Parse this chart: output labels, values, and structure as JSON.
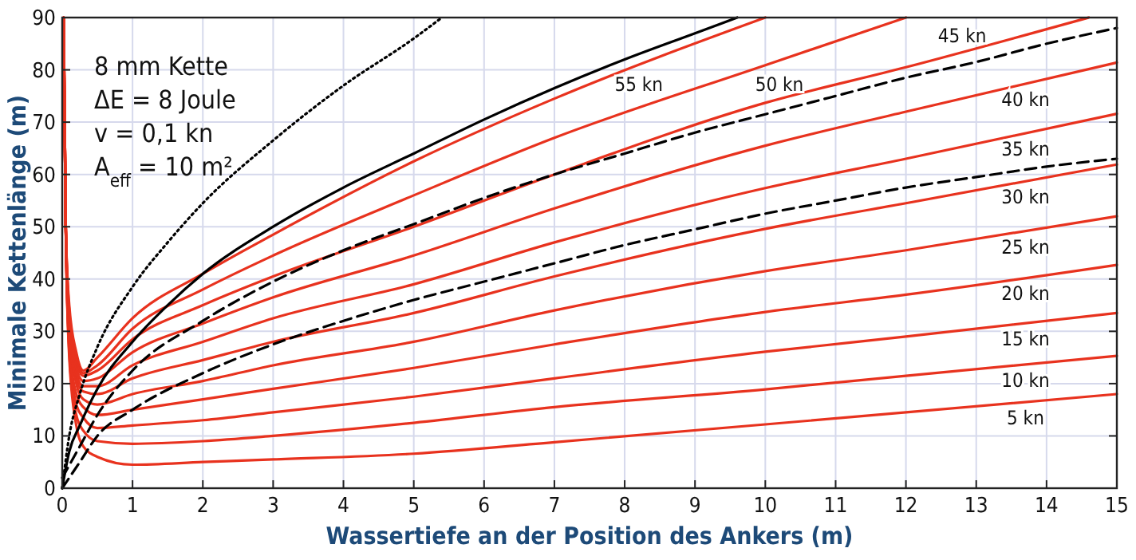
{
  "chart_data": {
    "type": "line",
    "xlabel": "Wassertiefe an der Position des Ankers (m)",
    "ylabel": "Minimale Kettenlänge (m)",
    "annotations": [
      "8 mm Kette",
      "ΔE = 8 Joule",
      "v = 0,1 kn",
      "A$_{eff}$ = 10 m²"
    ],
    "xlim": [
      0,
      15
    ],
    "ylim": [
      0,
      90
    ],
    "xticks": [
      0,
      1,
      2,
      3,
      4,
      5,
      6,
      7,
      8,
      9,
      10,
      11,
      12,
      13,
      14,
      15
    ],
    "yticks": [
      0,
      10,
      20,
      30,
      40,
      50,
      60,
      70,
      80,
      90
    ],
    "grid": true,
    "legend": false,
    "marker": "none",
    "series": [
      {
        "name": "5 kn",
        "color": "#e8321e",
        "x": [
          0.02,
          0.05,
          0.1,
          0.2,
          0.3,
          0.5,
          1,
          2,
          3,
          5,
          7,
          10,
          12,
          15
        ],
        "values": [
          90,
          50,
          25,
          12,
          8,
          6,
          4.5,
          5,
          5.5,
          6.6,
          8.8,
          12.2,
          14.5,
          18
        ]
      },
      {
        "name": "10 kn",
        "color": "#e8321e",
        "x": [
          0.02,
          0.05,
          0.1,
          0.2,
          0.3,
          0.5,
          1,
          2,
          3,
          5,
          7,
          10,
          12,
          15
        ],
        "values": [
          90,
          50,
          26,
          14,
          11,
          9,
          8.5,
          9,
          10,
          12.5,
          15.5,
          18.9,
          21.5,
          25.3
        ]
      },
      {
        "name": "15 kn",
        "color": "#e8321e",
        "x": [
          0.02,
          0.05,
          0.1,
          0.2,
          0.3,
          0.5,
          1,
          2,
          3,
          5,
          7,
          10,
          12,
          15
        ],
        "values": [
          90,
          50,
          27,
          16,
          13.5,
          11.5,
          12,
          13,
          14.5,
          17.5,
          21,
          26.1,
          29,
          33.5
        ]
      },
      {
        "name": "20 kn",
        "color": "#e8321e",
        "x": [
          0.02,
          0.05,
          0.1,
          0.2,
          0.3,
          0.5,
          1,
          2,
          3,
          5,
          7,
          10,
          12,
          15
        ],
        "values": [
          90,
          50,
          28,
          18,
          15.5,
          14,
          15,
          17,
          19,
          23,
          27.5,
          33.7,
          37,
          42.7
        ]
      },
      {
        "name": "25 kn",
        "color": "#e8321e",
        "x": [
          0.02,
          0.05,
          0.1,
          0.2,
          0.3,
          0.5,
          1,
          2,
          3,
          5,
          7,
          10,
          12,
          15
        ],
        "values": [
          90,
          50,
          29,
          20,
          17,
          16,
          18,
          20.5,
          23.5,
          28,
          34,
          41.5,
          45.5,
          52
        ]
      },
      {
        "name": "30 kn",
        "color": "#e8321e",
        "x": [
          0.02,
          0.05,
          0.1,
          0.2,
          0.3,
          0.5,
          1,
          2,
          3,
          5,
          7,
          10,
          12,
          15
        ],
        "values": [
          90,
          50,
          30,
          21,
          18.5,
          18,
          21,
          24.5,
          28,
          33.5,
          40.5,
          49.6,
          54.5,
          61.9
        ]
      },
      {
        "name": "35 kn",
        "color": "#e8321e",
        "x": [
          0.02,
          0.05,
          0.1,
          0.2,
          0.3,
          0.5,
          1,
          2,
          3,
          5,
          7,
          10,
          12,
          15
        ],
        "values": [
          90,
          50,
          31,
          22,
          19.5,
          19.5,
          23.5,
          28,
          32.5,
          39,
          47,
          57.4,
          63,
          71.6
        ]
      },
      {
        "name": "40 kn",
        "color": "#e8321e",
        "x": [
          0.02,
          0.05,
          0.1,
          0.2,
          0.3,
          0.5,
          1,
          2,
          3,
          5,
          7,
          10,
          12,
          15
        ],
        "values": [
          90,
          50,
          32,
          23,
          20.5,
          21,
          26,
          31.5,
          36.5,
          44.5,
          53.5,
          65.5,
          72,
          81.4
        ]
      },
      {
        "name": "45 kn",
        "color": "#e8321e",
        "x": [
          0.02,
          0.05,
          0.1,
          0.2,
          0.3,
          0.5,
          1,
          2,
          3,
          5,
          7,
          10,
          12,
          14.6
        ],
        "values": [
          90,
          50,
          33,
          24,
          21.5,
          22.5,
          28.5,
          35,
          40.5,
          50,
          60,
          73.7,
          80.5,
          90
        ]
      },
      {
        "name": "50 kn",
        "color": "#e8321e",
        "x": [
          0.02,
          0.05,
          0.1,
          0.2,
          0.3,
          0.5,
          1,
          2,
          3,
          5,
          7,
          10,
          12
        ],
        "values": [
          90,
          50,
          34,
          25,
          22,
          23.5,
          30.5,
          38,
          44.5,
          56,
          67,
          80.9,
          90
        ]
      },
      {
        "name": "55 kn",
        "color": "#e8321e",
        "x": [
          0.02,
          0.05,
          0.1,
          0.2,
          0.3,
          0.5,
          1,
          2,
          3,
          5,
          7,
          10
        ],
        "values": [
          90,
          50,
          35,
          26,
          22.5,
          25,
          32.5,
          41,
          48.5,
          62.5,
          74.5,
          90
        ]
      },
      {
        "color": "#000000",
        "line_style": "solid",
        "x": [
          0,
          0.1,
          0.25,
          0.5,
          1,
          1.5,
          2,
          3,
          4,
          5,
          6,
          7,
          8,
          9,
          9.6
        ],
        "values": [
          0,
          7,
          12,
          19,
          28,
          35,
          41,
          50,
          57.5,
          64,
          70.5,
          76.5,
          82,
          87,
          90
        ]
      },
      {
        "color": "#000000",
        "line_style": "dashed",
        "x": [
          0,
          0.25,
          0.5,
          1,
          2,
          3,
          4,
          5,
          6,
          7,
          8,
          9,
          10,
          11,
          12,
          13,
          14,
          15
        ],
        "values": [
          2,
          8,
          14,
          22.5,
          32,
          39.5,
          45.5,
          50.5,
          55.5,
          60,
          64,
          68,
          71.5,
          75,
          78.5,
          81.5,
          85,
          88
        ]
      },
      {
        "color": "#000000",
        "line_style": "dashed",
        "x": [
          0,
          0.25,
          0.5,
          1,
          2,
          3,
          4,
          5,
          6,
          7,
          8,
          9,
          10,
          11,
          12,
          13,
          14,
          15
        ],
        "values": [
          0,
          5,
          10,
          15,
          22,
          27.5,
          32,
          36,
          39.5,
          43,
          46.5,
          49.5,
          52.5,
          55,
          57.5,
          59.5,
          61.5,
          63
        ]
      },
      {
        "color": "#000000",
        "line_style": "dotted",
        "x": [
          0,
          0.1,
          0.25,
          0.5,
          1,
          1.5,
          2,
          3,
          4,
          5,
          5.4
        ],
        "values": [
          0,
          10,
          18,
          27,
          38.5,
          47,
          54.5,
          66.5,
          77,
          86,
          90
        ]
      }
    ]
  }
}
